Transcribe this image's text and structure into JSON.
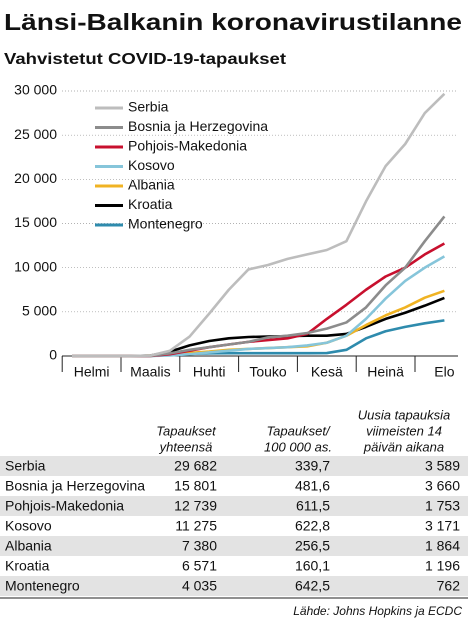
{
  "chart_data": {
    "type": "line",
    "title": "Länsi-Balkanin koronavirustilanne",
    "subtitle": "Vahvistetut COVID-19-tapaukset",
    "categories": [
      null,
      "Helmi",
      null,
      null,
      "Maalis",
      null,
      null,
      "Huhti",
      null,
      null,
      "Touko",
      null,
      null,
      "Kesä",
      null,
      null,
      "Heinä",
      null,
      null,
      "Elo"
    ],
    "ylim": [
      0,
      30000
    ],
    "yticks": [
      {
        "value": 0,
        "label": "0"
      },
      {
        "value": 5000,
        "label": "5 000"
      },
      {
        "value": 10000,
        "label": "10 000"
      },
      {
        "value": 15000,
        "label": "15 000"
      },
      {
        "value": 20000,
        "label": "20 000"
      },
      {
        "value": 25000,
        "label": "25 000"
      },
      {
        "value": 30000,
        "label": "30 000"
      }
    ],
    "grid": true,
    "legend": "upper left",
    "series": [
      {
        "name": "Serbia",
        "color": "#bdbdbd",
        "values": [
          0,
          0,
          0,
          0,
          50,
          600,
          2200,
          4800,
          7500,
          9800,
          10300,
          11000,
          11500,
          12000,
          13000,
          17500,
          21500,
          24000,
          27500,
          29682
        ]
      },
      {
        "name": "Bosnia ja Herzegovina",
        "color": "#8c8c8c",
        "values": [
          0,
          0,
          0,
          0,
          20,
          300,
          700,
          1000,
          1300,
          1600,
          2100,
          2300,
          2600,
          3100,
          3800,
          5500,
          8000,
          10000,
          13000,
          15801
        ]
      },
      {
        "name": "Pohjois-Makedonia",
        "color": "#c8102e",
        "values": [
          0,
          0,
          0,
          0,
          10,
          200,
          600,
          1000,
          1300,
          1600,
          1800,
          2000,
          2500,
          4200,
          5800,
          7500,
          9000,
          10000,
          11500,
          12739
        ]
      },
      {
        "name": "Kosovo",
        "color": "#86c5da",
        "values": [
          0,
          0,
          0,
          0,
          0,
          60,
          200,
          400,
          600,
          800,
          900,
          1000,
          1200,
          1500,
          2300,
          4200,
          6500,
          8500,
          10000,
          11275
        ]
      },
      {
        "name": "Albania",
        "color": "#f0b323",
        "values": [
          0,
          0,
          0,
          0,
          30,
          200,
          350,
          500,
          700,
          800,
          900,
          1000,
          1100,
          1500,
          2300,
          3500,
          4600,
          5500,
          6600,
          7380
        ]
      },
      {
        "name": "Kroatia",
        "color": "#000000",
        "values": [
          0,
          0,
          0,
          0,
          50,
          500,
          1200,
          1700,
          2000,
          2150,
          2200,
          2250,
          2300,
          2300,
          2500,
          3300,
          4200,
          4900,
          5700,
          6571
        ]
      },
      {
        "name": "Montenegro",
        "color": "#2e8bad",
        "values": [
          0,
          0,
          0,
          0,
          0,
          100,
          250,
          300,
          320,
          324,
          324,
          324,
          324,
          330,
          700,
          2000,
          2800,
          3300,
          3700,
          4035
        ]
      }
    ]
  },
  "table": {
    "headers": [
      [
        "Tapaukset",
        "yhteensä"
      ],
      [
        "Tapaukset/",
        "100 000 as."
      ],
      [
        "Uusia tapauksia",
        "viimeisten 14",
        "päivän aikana"
      ]
    ],
    "rows": [
      [
        "Serbia",
        "29 682",
        "339,7",
        "3 589"
      ],
      [
        "Bosnia ja Herzegovina",
        "15 801",
        "481,6",
        "3 660"
      ],
      [
        "Pohjois-Makedonia",
        "12 739",
        "611,5",
        "1 753"
      ],
      [
        "Kosovo",
        "11 275",
        "622,8",
        "3 171"
      ],
      [
        "Albania",
        "7 380",
        "256,5",
        "1 864"
      ],
      [
        "Kroatia",
        "6 571",
        "160,1",
        "1 196"
      ],
      [
        "Montenegro",
        "4 035",
        "642,5",
        "762"
      ]
    ],
    "source": "Lähde: Johns Hopkins ja ECDC"
  }
}
